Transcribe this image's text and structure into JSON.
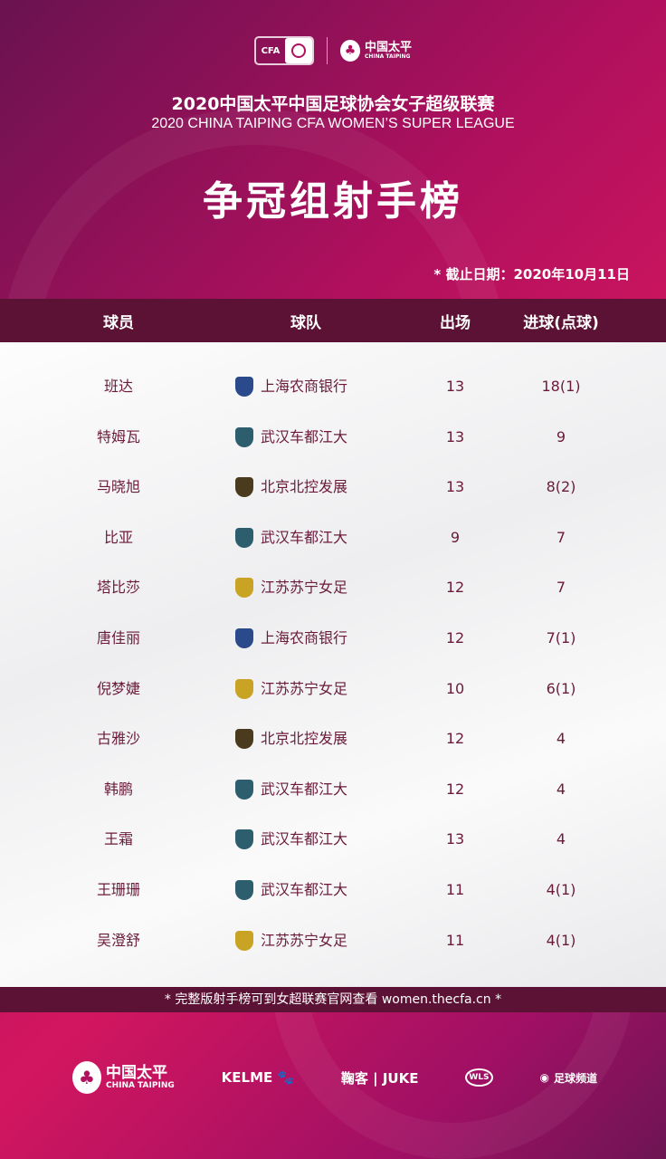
{
  "header": {
    "cfa_logo": "CFA",
    "sponsor_logo_cn": "中国太平",
    "sponsor_logo_en": "CHINA TAIPING",
    "title_cn": "2020中国太平中国足球协会女子超级联赛",
    "title_en": "2020 CHINA TAIPING CFA WOMEN’S SUPER LEAGUE",
    "main_title": "争冠组射手榜",
    "date_note": "* 截止日期：2020年10月11日"
  },
  "columns": [
    "球员",
    "球队",
    "出场",
    "进球(点球)"
  ],
  "team_colors": {
    "上海农商银行": "#2b4a8c",
    "武汉车都江大": "#2c5e6e",
    "北京北控发展": "#4a3b1e",
    "江苏苏宁女足": "#c9a324"
  },
  "rows": [
    {
      "player": "班达",
      "team": "上海农商银行",
      "apps": "13",
      "goals": "18(1)"
    },
    {
      "player": "特姆瓦",
      "team": "武汉车都江大",
      "apps": "13",
      "goals": "9"
    },
    {
      "player": "马晓旭",
      "team": "北京北控发展",
      "apps": "13",
      "goals": "8(2)"
    },
    {
      "player": "比亚",
      "team": "武汉车都江大",
      "apps": "9",
      "goals": "7"
    },
    {
      "player": "塔比莎",
      "team": "江苏苏宁女足",
      "apps": "12",
      "goals": "7"
    },
    {
      "player": "唐佳丽",
      "team": "上海农商银行",
      "apps": "12",
      "goals": "7(1)"
    },
    {
      "player": "倪梦婕",
      "team": "江苏苏宁女足",
      "apps": "10",
      "goals": "6(1)"
    },
    {
      "player": "古雅沙",
      "team": "北京北控发展",
      "apps": "12",
      "goals": "4"
    },
    {
      "player": "韩鹏",
      "team": "武汉车都江大",
      "apps": "12",
      "goals": "4"
    },
    {
      "player": "王霜",
      "team": "武汉车都江大",
      "apps": "13",
      "goals": "4"
    },
    {
      "player": "王珊珊",
      "team": "武汉车都江大",
      "apps": "11",
      "goals": "4(1)"
    },
    {
      "player": "吴澄舒",
      "team": "江苏苏宁女足",
      "apps": "11",
      "goals": "4(1)"
    }
  ],
  "footer_note": "* 完整版射手榜可到女超联赛官网查看 women.thecfa.cn *",
  "sponsors": {
    "taiping_cn": "中国太平",
    "taiping_en": "CHINA TAIPING",
    "kelme": "KELME",
    "juke": "鞠客 | JUKE",
    "wls": "WLS",
    "channel": "足球频道"
  }
}
